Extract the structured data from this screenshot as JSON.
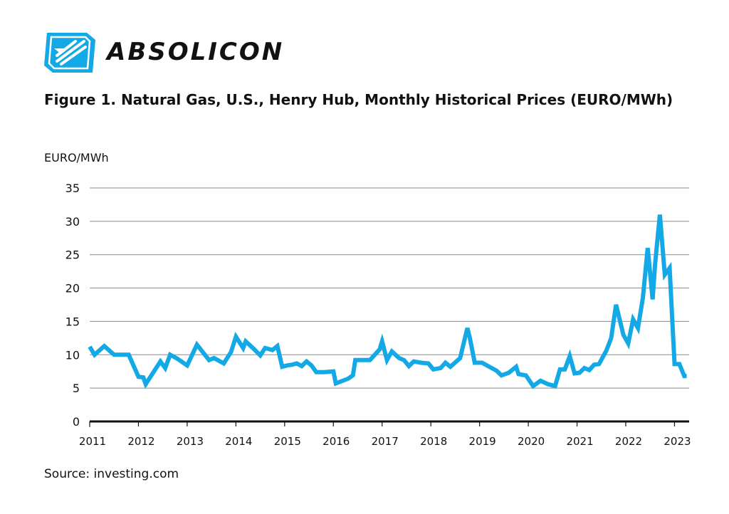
{
  "brand": {
    "name": "ABSOLICON",
    "logo_icon": "absolicon-logo-icon",
    "accent": "#13A8E6"
  },
  "figure": {
    "title": "Figure 1. Natural Gas, U.S., Henry Hub, Monthly Historical Prices (EURO/MWh)"
  },
  "source": "Source: investing.com",
  "chart_data": {
    "type": "line",
    "title": "Figure 1. Natural Gas, U.S., Henry Hub, Monthly Historical Prices (EURO/MWh)",
    "xlabel": "",
    "ylabel": "EURO/MWh",
    "ylim": [
      0,
      35
    ],
    "yticks": [
      0,
      5,
      10,
      15,
      20,
      25,
      30,
      35
    ],
    "xlim": [
      2011,
      2023.3
    ],
    "xticks": [
      2011,
      2012,
      2013,
      2014,
      2015,
      2016,
      2017,
      2018,
      2019,
      2020,
      2021,
      2022,
      2023
    ],
    "xtick_labels": [
      "2011",
      "2012",
      "2013",
      "2014",
      "2015",
      "2016",
      "2017",
      "2018",
      "2019",
      "2020",
      "2021",
      "2022",
      "2023"
    ],
    "grid": true,
    "line_color": "#13A8E6",
    "series": [
      {
        "name": "Henry Hub",
        "x": [
          2011.0,
          2011.1,
          2011.3,
          2011.5,
          2011.8,
          2012.0,
          2012.1,
          2012.15,
          2012.3,
          2012.45,
          2012.55,
          2012.65,
          2012.8,
          2013.0,
          2013.2,
          2013.45,
          2013.55,
          2013.75,
          2013.9,
          2014.0,
          2014.15,
          2014.2,
          2014.35,
          2014.5,
          2014.6,
          2014.75,
          2014.85,
          2014.95,
          2015.05,
          2015.15,
          2015.25,
          2015.35,
          2015.45,
          2015.55,
          2015.65,
          2015.8,
          2016.0,
          2016.05,
          2016.3,
          2016.4,
          2016.45,
          2016.65,
          2016.75,
          2016.95,
          2017.0,
          2017.1,
          2017.2,
          2017.35,
          2017.45,
          2017.55,
          2017.65,
          2017.8,
          2017.95,
          2018.05,
          2018.2,
          2018.3,
          2018.4,
          2018.6,
          2018.75,
          2018.8,
          2018.9,
          2019.05,
          2019.35,
          2019.45,
          2019.6,
          2019.75,
          2019.8,
          2019.95,
          2020.1,
          2020.25,
          2020.4,
          2020.55,
          2020.65,
          2020.75,
          2020.85,
          2020.95,
          2021.05,
          2021.15,
          2021.25,
          2021.35,
          2021.45,
          2021.6,
          2021.7,
          2021.8,
          2021.95,
          2022.05,
          2022.15,
          2022.25,
          2022.35,
          2022.45,
          2022.55,
          2022.6,
          2022.7,
          2022.8,
          2022.9,
          2023.0,
          2023.1,
          2023.2,
          2023.25
        ],
        "values": [
          11.2,
          10.0,
          11.3,
          10.0,
          10.0,
          6.7,
          6.6,
          5.6,
          7.3,
          9.0,
          8.0,
          10.0,
          9.4,
          8.4,
          11.5,
          9.2,
          9.5,
          8.7,
          10.4,
          12.7,
          11.0,
          12.0,
          11.0,
          9.9,
          11.0,
          10.7,
          11.3,
          8.2,
          8.4,
          8.5,
          8.7,
          8.3,
          9.0,
          8.4,
          7.4,
          7.4,
          7.5,
          5.7,
          6.4,
          6.9,
          9.2,
          9.2,
          9.2,
          10.8,
          12.0,
          9.2,
          10.5,
          9.5,
          9.2,
          8.3,
          9.0,
          8.8,
          8.7,
          7.8,
          8.0,
          8.8,
          8.2,
          9.5,
          14.0,
          12.5,
          8.8,
          8.8,
          7.6,
          6.9,
          7.3,
          8.2,
          7.1,
          6.9,
          5.3,
          6.1,
          5.6,
          5.3,
          7.8,
          7.8,
          9.8,
          7.2,
          7.3,
          8.0,
          7.7,
          8.5,
          8.6,
          10.6,
          12.5,
          17.5,
          13.0,
          11.7,
          15.3,
          14.0,
          18.5,
          26.0,
          18.3,
          23.5,
          31.0,
          22.0,
          23.0,
          8.6,
          8.6,
          6.8,
          6.8
        ]
      }
    ]
  }
}
